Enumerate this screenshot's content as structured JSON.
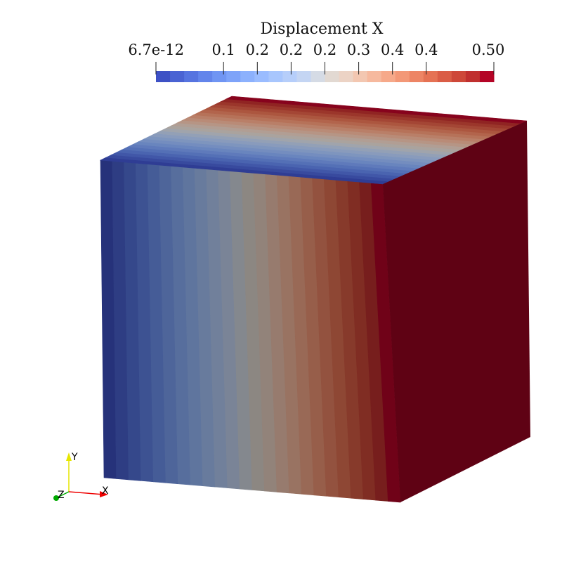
{
  "colorbar": {
    "title": "Displacement X",
    "xlim": [
      6.7e-12,
      0.5
    ],
    "ticks": [
      6.7e-12,
      0.1,
      {
        "value": 0.15,
        "label": "0.2"
      },
      0.2,
      {
        "value": 0.25,
        "label": "0.2"
      },
      0.3,
      {
        "value": 0.35,
        "label": "0.4"
      },
      0.4,
      {
        "value": 0.5,
        "label": "0.50"
      }
    ],
    "colors": [
      "#3e51c5",
      "#4a63d3",
      "#5674e0",
      "#6385eb",
      "#7095f3",
      "#7ea3f9",
      "#8cb1fd",
      "#9abcff",
      "#a8c6fd",
      "#b6cefa",
      "#c4d5f3",
      "#d5dbe5",
      "#e2d9d2",
      "#ecd3c5",
      "#f3c7b1",
      "#f6b99e",
      "#f6a98a",
      "#f39877",
      "#ed8565",
      "#e57254",
      "#da5d46",
      "#ce4839",
      "#c0302f",
      "#b40426"
    ]
  },
  "axes_triad": {
    "x": "X",
    "y": "Y",
    "z": "Z"
  }
}
